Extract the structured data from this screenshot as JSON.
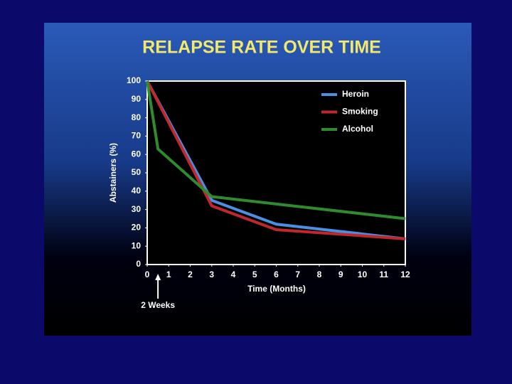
{
  "chart_data": {
    "type": "line",
    "title": "RELAPSE RATE OVER TIME",
    "x_label": "Time (Months)",
    "y_label": "Abstainers (%)",
    "series": [
      {
        "name": "Heroin",
        "color": "#4a90e2",
        "x": [
          0,
          3,
          6,
          12
        ],
        "values": [
          100,
          35,
          22,
          14
        ]
      },
      {
        "name": "Smoking",
        "color": "#c0282d",
        "x": [
          0,
          3,
          6,
          12
        ],
        "values": [
          100,
          32,
          19,
          14
        ]
      },
      {
        "name": "Alcohol",
        "color": "#2e8b2e",
        "x": [
          0,
          0.5,
          3,
          6,
          12
        ],
        "values": [
          100,
          63,
          37,
          33,
          25
        ]
      }
    ],
    "xlim": [
      0,
      12
    ],
    "xticks": [
      0,
      1,
      2,
      3,
      4,
      5,
      6,
      7,
      8,
      9,
      10,
      11,
      12
    ],
    "ylim": [
      0,
      100
    ],
    "yticks": [
      0,
      10,
      20,
      30,
      40,
      50,
      60,
      70,
      80,
      90,
      100
    ],
    "annotations": [
      {
        "text": "2 Weeks",
        "x": 0.5
      }
    ],
    "legend": "upper-right"
  }
}
